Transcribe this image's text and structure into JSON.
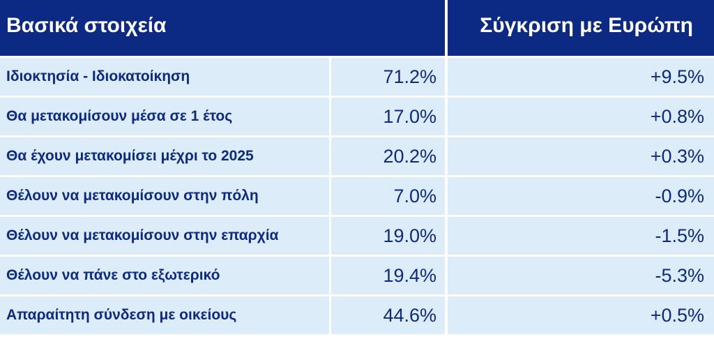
{
  "header": {
    "left": "Βασικά στοιχεία",
    "right": "Σύγκριση με Ευρώπη"
  },
  "rows": [
    {
      "label": "Ιδιοκτησία - Ιδιοκατοίκηση",
      "value": "71.2%",
      "compare": "+9.5%"
    },
    {
      "label": "Θα μετακομίσουν μέσα σε 1 έτος",
      "value": "17.0%",
      "compare": "+0.8%"
    },
    {
      "label": "Θα έχουν μετακομίσει μέχρι το 2025",
      "value": "20.2%",
      "compare": "+0.3%"
    },
    {
      "label": "Θέλουν να μετακομίσουν στην πόλη",
      "value": "7.0%",
      "compare": "-0.9%"
    },
    {
      "label": "Θέλουν να μετακομίσουν στην επαρχία",
      "value": "19.0%",
      "compare": "-1.5%"
    },
    {
      "label": "Θέλουν να πάνε στο εξωτερικό",
      "value": "19.4%",
      "compare": "-5.3%"
    },
    {
      "label": "Απαραίτητη σύνδεση με οικείους",
      "value": "44.6%",
      "compare": "+0.5%"
    }
  ],
  "colors": {
    "header_bg": "#0c2a84",
    "header_text": "#ffffff",
    "row_bg": "#dcecf8",
    "row_text": "#0c2a84"
  },
  "chart_data": {
    "type": "table",
    "columns": [
      "Βασικά στοιχεία",
      "",
      "Σύγκριση με Ευρώπη"
    ],
    "categories": [
      "Ιδιοκτησία - Ιδιοκατοίκηση",
      "Θα μετακομίσουν μέσα σε 1 έτος",
      "Θα έχουν μετακομίσει μέχρι το 2025",
      "Θέλουν να μετακομίσουν στην πόλη",
      "Θέλουν να μετακομίσουν στην επαρχία",
      "Θέλουν να πάνε στο εξωτερικό",
      "Απαραίτητη σύνδεση με οικείους"
    ],
    "values": [
      71.2,
      17.0,
      20.2,
      7.0,
      19.0,
      19.4,
      44.6
    ],
    "comparison_with_europe": [
      9.5,
      0.8,
      0.3,
      -0.9,
      -1.5,
      -5.3,
      0.5
    ]
  }
}
